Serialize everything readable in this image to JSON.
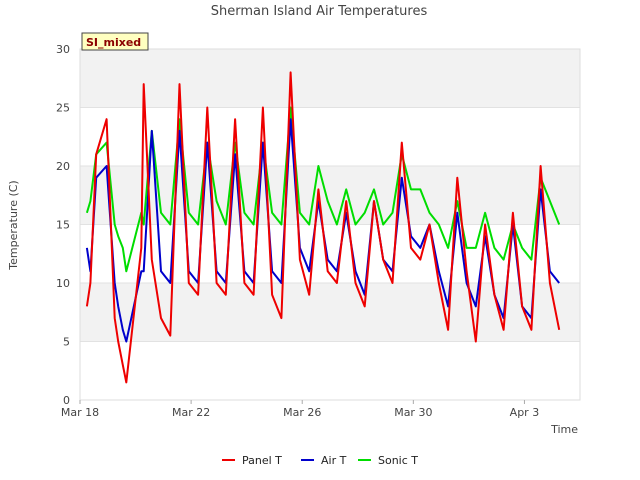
{
  "chart_data": {
    "type": "line",
    "title": "Sherman Island Air Temperatures",
    "xlabel": "Time",
    "ylabel": "Temperature (C)",
    "badge": "SI_mixed",
    "ylim": [
      0,
      30
    ],
    "xlim": [
      "2024-03-18",
      "2024-04-05"
    ],
    "yticks": [
      0,
      5,
      10,
      15,
      20,
      25,
      30
    ],
    "xticks": [
      {
        "date": "2024-03-18",
        "label": "Mar 18"
      },
      {
        "date": "2024-03-22",
        "label": "Mar 22"
      },
      {
        "date": "2024-03-26",
        "label": "Mar 26"
      },
      {
        "date": "2024-03-30",
        "label": "Mar 30"
      },
      {
        "date": "2024-04-03",
        "label": "Apr 3"
      }
    ],
    "grid": true,
    "legend_position": "bottom",
    "series": [
      {
        "name": "Panel T",
        "color": "#ee0000",
        "x": [
          "2024-03-18 06:00",
          "2024-03-18 09:00",
          "2024-03-18 14:00",
          "2024-03-18 23:00",
          "2024-03-19 06:00",
          "2024-03-19 09:00",
          "2024-03-19 13:00",
          "2024-03-19 16:00",
          "2024-03-20 05:00",
          "2024-03-20 07:00",
          "2024-03-20 14:00",
          "2024-03-20 22:00",
          "2024-03-21 06:00",
          "2024-03-21 14:00",
          "2024-03-21 22:00",
          "2024-03-22 06:00",
          "2024-03-22 14:00",
          "2024-03-22 22:00",
          "2024-03-23 06:00",
          "2024-03-23 14:00",
          "2024-03-23 22:00",
          "2024-03-24 06:00",
          "2024-03-24 14:00",
          "2024-03-24 22:00",
          "2024-03-25 06:00",
          "2024-03-25 14:00",
          "2024-03-25 22:00",
          "2024-03-26 06:00",
          "2024-03-26 14:00",
          "2024-03-26 22:00",
          "2024-03-27 06:00",
          "2024-03-27 14:00",
          "2024-03-27 22:00",
          "2024-03-28 06:00",
          "2024-03-28 14:00",
          "2024-03-28 22:00",
          "2024-03-29 06:00",
          "2024-03-29 14:00",
          "2024-03-29 22:00",
          "2024-03-30 06:00",
          "2024-03-30 14:00",
          "2024-03-30 22:00",
          "2024-03-31 06:00",
          "2024-03-31 14:00",
          "2024-03-31 22:00",
          "2024-04-01 06:00",
          "2024-04-01 14:00",
          "2024-04-01 22:00",
          "2024-04-02 06:00",
          "2024-04-02 14:00",
          "2024-04-02 22:00",
          "2024-04-03 06:00",
          "2024-04-03 14:00",
          "2024-04-03 22:00",
          "2024-04-04 06:00"
        ],
        "y": [
          8,
          10,
          21,
          24,
          7,
          5,
          3,
          1.5,
          13,
          27,
          12,
          7,
          5.5,
          27,
          10,
          9,
          25,
          10,
          9,
          24,
          10,
          9,
          25,
          9,
          7,
          28,
          12,
          9,
          18,
          11,
          10,
          17,
          10,
          8,
          17,
          12,
          10,
          22,
          13,
          12,
          15,
          10,
          6,
          19,
          11,
          5,
          15,
          9,
          6,
          16,
          8,
          6,
          20,
          10,
          6
        ]
      },
      {
        "name": "Air T",
        "color": "#0000cc",
        "x": [
          "2024-03-18 06:00",
          "2024-03-18 09:00",
          "2024-03-18 14:00",
          "2024-03-18 23:00",
          "2024-03-19 06:00",
          "2024-03-19 09:00",
          "2024-03-19 13:00",
          "2024-03-19 16:00",
          "2024-03-20 05:00",
          "2024-03-20 07:00",
          "2024-03-20 14:00",
          "2024-03-20 22:00",
          "2024-03-21 06:00",
          "2024-03-21 14:00",
          "2024-03-21 22:00",
          "2024-03-22 06:00",
          "2024-03-22 14:00",
          "2024-03-22 22:00",
          "2024-03-23 06:00",
          "2024-03-23 14:00",
          "2024-03-23 22:00",
          "2024-03-24 06:00",
          "2024-03-24 14:00",
          "2024-03-24 22:00",
          "2024-03-25 06:00",
          "2024-03-25 14:00",
          "2024-03-25 22:00",
          "2024-03-26 06:00",
          "2024-03-26 14:00",
          "2024-03-26 22:00",
          "2024-03-27 06:00",
          "2024-03-27 14:00",
          "2024-03-27 22:00",
          "2024-03-28 06:00",
          "2024-03-28 14:00",
          "2024-03-28 22:00",
          "2024-03-29 06:00",
          "2024-03-29 14:00",
          "2024-03-29 22:00",
          "2024-03-30 06:00",
          "2024-03-30 14:00",
          "2024-03-30 22:00",
          "2024-03-31 06:00",
          "2024-03-31 14:00",
          "2024-03-31 22:00",
          "2024-04-01 06:00",
          "2024-04-01 14:00",
          "2024-04-01 22:00",
          "2024-04-02 06:00",
          "2024-04-02 14:00",
          "2024-04-02 22:00",
          "2024-04-03 06:00",
          "2024-04-03 14:00",
          "2024-04-03 22:00",
          "2024-04-04 06:00"
        ],
        "y": [
          13,
          11,
          19,
          20,
          10,
          8,
          6,
          5,
          11,
          11,
          23,
          11,
          10,
          23,
          11,
          10,
          22,
          11,
          10,
          21,
          11,
          10,
          22,
          11,
          10,
          24,
          13,
          11,
          17,
          12,
          11,
          16,
          11,
          9,
          17,
          12,
          11,
          19,
          14,
          13,
          15,
          11,
          8,
          16,
          10,
          8,
          14,
          9,
          7,
          15,
          8,
          7,
          18,
          11,
          10
        ]
      },
      {
        "name": "Sonic T",
        "color": "#00dd00",
        "x": [
          "2024-03-18 06:00",
          "2024-03-18 09:00",
          "2024-03-18 14:00",
          "2024-03-18 23:00",
          "2024-03-19 06:00",
          "2024-03-19 09:00",
          "2024-03-19 13:00",
          "2024-03-19 16:00",
          "2024-03-20 05:00",
          "2024-03-20 07:00",
          "2024-03-20 14:00",
          "2024-03-20 22:00",
          "2024-03-21 06:00",
          "2024-03-21 14:00",
          "2024-03-21 22:00",
          "2024-03-22 06:00",
          "2024-03-22 14:00",
          "2024-03-22 22:00",
          "2024-03-23 06:00",
          "2024-03-23 14:00",
          "2024-03-23 22:00",
          "2024-03-24 06:00",
          "2024-03-24 14:00",
          "2024-03-24 22:00",
          "2024-03-25 06:00",
          "2024-03-25 14:00",
          "2024-03-25 22:00",
          "2024-03-26 06:00",
          "2024-03-26 14:00",
          "2024-03-26 22:00",
          "2024-03-27 06:00",
          "2024-03-27 14:00",
          "2024-03-27 22:00",
          "2024-03-28 06:00",
          "2024-03-28 14:00",
          "2024-03-28 22:00",
          "2024-03-29 06:00",
          "2024-03-29 14:00",
          "2024-03-29 22:00",
          "2024-03-30 06:00",
          "2024-03-30 14:00",
          "2024-03-30 22:00",
          "2024-03-31 06:00",
          "2024-03-31 14:00",
          "2024-03-31 22:00",
          "2024-04-01 06:00",
          "2024-04-01 14:00",
          "2024-04-01 22:00",
          "2024-04-02 06:00",
          "2024-04-02 14:00",
          "2024-04-02 22:00",
          "2024-04-03 06:00",
          "2024-04-03 14:00",
          "2024-04-03 22:00",
          "2024-04-04 06:00"
        ],
        "y": [
          16,
          17,
          21,
          22,
          15,
          14,
          13,
          11,
          16,
          15,
          23,
          16,
          15,
          24,
          16,
          15,
          22,
          17,
          15,
          22,
          16,
          15,
          22,
          16,
          15,
          25,
          16,
          15,
          20,
          17,
          15,
          18,
          15,
          16,
          18,
          15,
          16,
          21,
          18,
          18,
          16,
          15,
          13,
          17,
          13,
          13,
          16,
          13,
          12,
          15,
          13,
          12,
          19,
          17,
          15
        ]
      }
    ]
  }
}
